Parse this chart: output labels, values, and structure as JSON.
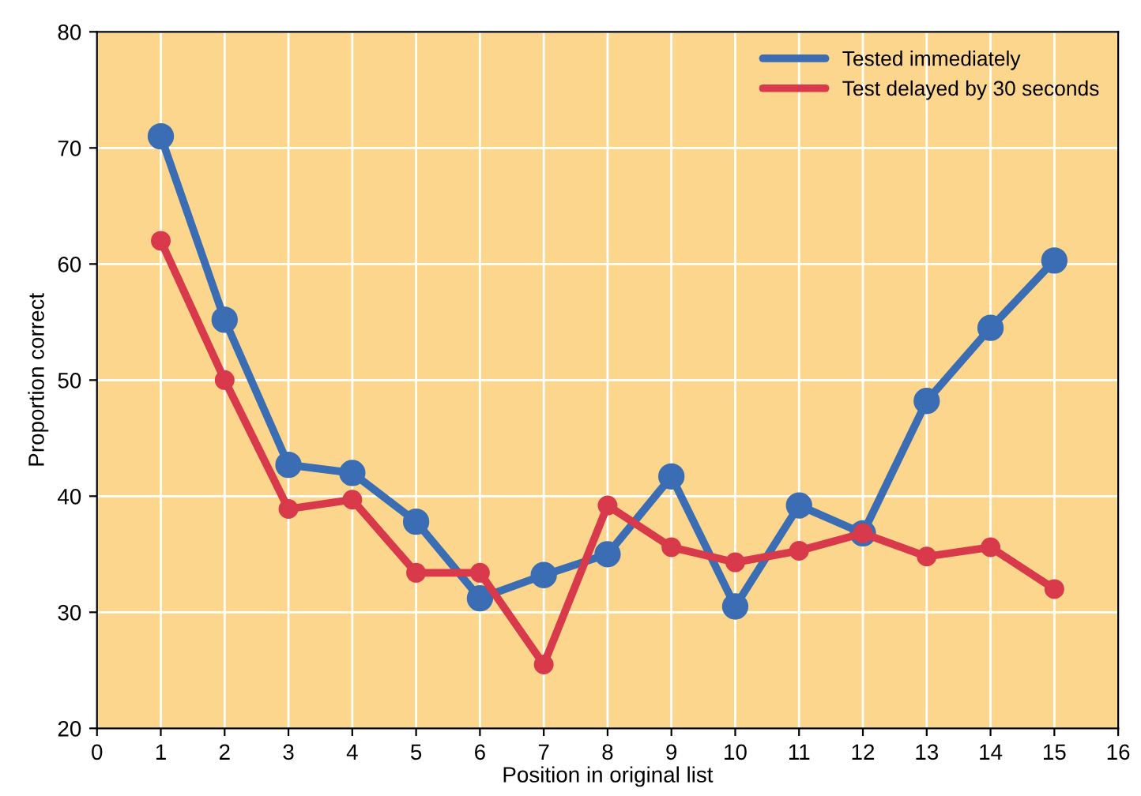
{
  "chart_data": {
    "type": "line",
    "xlabel": "Position in original list",
    "ylabel": "Proportion correct",
    "x": [
      1,
      2,
      3,
      4,
      5,
      6,
      7,
      8,
      9,
      10,
      11,
      12,
      13,
      14,
      15
    ],
    "series": [
      {
        "name": "Tested immediately",
        "color": "#3a6db3",
        "values": [
          71,
          55.2,
          42.7,
          42,
          37.8,
          31.2,
          33.2,
          35,
          41.7,
          30.5,
          39.2,
          36.8,
          48.2,
          54.5,
          60.3
        ]
      },
      {
        "name": "Test delayed by 30 seconds",
        "color": "#d8394b",
        "values": [
          62,
          50,
          38.9,
          39.7,
          33.4,
          33.4,
          25.5,
          39.2,
          35.6,
          34.3,
          35.3,
          36.8,
          34.8,
          35.6,
          32
        ]
      }
    ],
    "xlim": [
      0,
      16
    ],
    "xticks": [
      0,
      1,
      2,
      3,
      4,
      5,
      6,
      7,
      8,
      9,
      10,
      11,
      12,
      13,
      14,
      15,
      16
    ],
    "ylim": [
      20,
      80
    ],
    "yticks": [
      20,
      30,
      40,
      50,
      60,
      70,
      80
    ],
    "grid": true,
    "legend": "top right",
    "marker": "circle",
    "line_style": "solid"
  }
}
